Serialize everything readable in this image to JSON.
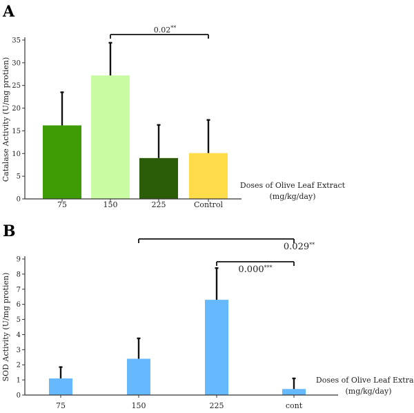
{
  "chart_data": [
    {
      "panel": "A",
      "type": "bar",
      "categories": [
        "75",
        "150",
        "225",
        "Control"
      ],
      "values": [
        16.2,
        27.2,
        9.0,
        10.1
      ],
      "errors": [
        7.3,
        7.2,
        7.3,
        7.3
      ],
      "colors": [
        "#3f9b04",
        "#c9fca2",
        "#2b5c07",
        "#ffdc4a"
      ],
      "ylabel": "Catalase Activity (U/mg protien)",
      "xlabel": [
        "Doses of Olive Leaf Extract",
        "(mg/kg/day)"
      ],
      "ylim": [
        0,
        35
      ],
      "yticks": [
        0,
        5,
        10,
        15,
        20,
        25,
        30,
        35
      ],
      "annotations": [
        {
          "from": 1,
          "to": 3,
          "label": "0.02",
          "stars": "**"
        }
      ],
      "grid": false
    },
    {
      "panel": "B",
      "type": "bar",
      "categories": [
        "75",
        "150",
        "225",
        "cont"
      ],
      "values": [
        1.1,
        2.4,
        6.3,
        0.4
      ],
      "errors": [
        0.75,
        1.35,
        2.1,
        0.7
      ],
      "colors": [
        "#66b8ff",
        "#66b8ff",
        "#66b8ff",
        "#66b8ff"
      ],
      "ylabel": "SOD Activity (U/mg protien)",
      "xlabel": [
        "Doses of Olive Leaf Extract",
        "(mg/kg/day)"
      ],
      "ylim": [
        0,
        9
      ],
      "yticks": [
        0,
        1,
        2,
        3,
        4,
        5,
        6,
        7,
        8,
        9
      ],
      "annotations": [
        {
          "from": 1,
          "to": 3,
          "label": "0.029",
          "stars": "**"
        },
        {
          "from": 2,
          "to": 3,
          "label": "0.000",
          "stars": "***"
        }
      ],
      "grid": false
    }
  ]
}
